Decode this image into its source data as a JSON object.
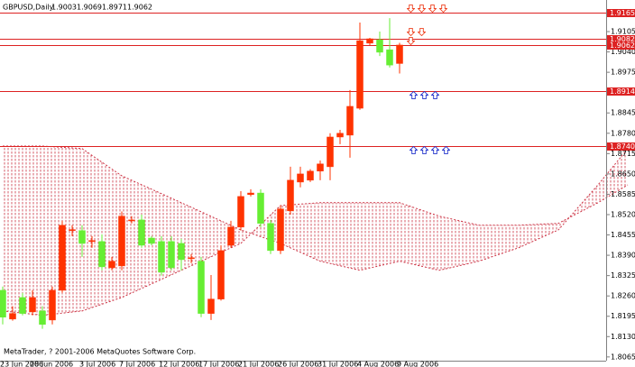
{
  "chart_data": {
    "type": "candlestick",
    "symbol": "GBPUSD,Daily",
    "footer": "MetaTrader, ? 2001-2006 MetaQuotes Software Corp.",
    "categories": [
      "23 Jun 2006",
      null,
      null,
      "28 Jun 2006",
      null,
      null,
      null,
      null,
      "3 Jul 2006",
      null,
      null,
      null,
      "7 Jul 2006",
      null,
      null,
      null,
      "12 Jul 2006",
      null,
      null,
      null,
      "17 Jul 2006",
      null,
      null,
      null,
      "21 Jul 2006",
      null,
      null,
      null,
      "26 Jul 2006",
      null,
      null,
      null,
      "31 Jul 2006",
      null,
      null,
      null,
      "4 Aug 2006",
      null,
      null,
      null,
      "9 Aug 2006"
    ],
    "open": [
      1.8278,
      1.8186,
      1.8255,
      1.8209,
      1.8212,
      1.8183,
      1.8278,
      1.8469,
      1.8469,
      1.8434,
      1.8434,
      1.835,
      1.8356,
      1.85,
      1.8503,
      1.8445,
      1.8434,
      1.8434,
      1.8428,
      1.8379,
      1.8371,
      1.8204,
      1.825,
      1.8422,
      1.848,
      1.8584,
      1.8589,
      1.8492,
      1.8405,
      1.8532,
      1.8624,
      1.863,
      1.8659,
      1.8673,
      1.8768,
      1.8774,
      1.886,
      1.9068,
      1.9079,
      1.9047,
      1.9003
    ],
    "high": [
      1.829,
      1.8227,
      1.827,
      1.8278,
      1.8227,
      1.829,
      1.85,
      1.8486,
      1.8486,
      1.8451,
      1.8457,
      1.8385,
      1.853,
      1.8515,
      1.852,
      1.8451,
      1.8451,
      1.8451,
      1.8443,
      1.8394,
      1.8385,
      1.8327,
      1.8422,
      1.85,
      1.8595,
      1.8601,
      1.8601,
      1.8503,
      1.8549,
      1.8673,
      1.8673,
      1.8665,
      1.8693,
      1.878,
      1.8791,
      1.8918,
      1.9134,
      1.9085,
      1.9105,
      1.9148,
      1.9069
    ],
    "low": [
      1.8169,
      1.8181,
      1.8198,
      1.8198,
      1.8155,
      1.8169,
      1.827,
      1.8451,
      1.8385,
      1.8414,
      1.8342,
      1.8342,
      1.8342,
      1.8492,
      1.8414,
      1.8422,
      1.8325,
      1.8342,
      1.8342,
      1.8365,
      1.8192,
      1.8183,
      1.8245,
      1.8414,
      1.8469,
      1.8578,
      1.848,
      1.8394,
      1.8394,
      1.852,
      1.8607,
      1.8624,
      1.863,
      1.863,
      1.8745,
      1.8702,
      1.8855,
      1.9062,
      1.9027,
      1.899,
      1.8971
    ],
    "close": [
      1.8192,
      1.8204,
      1.8204,
      1.8255,
      1.8169,
      1.8278,
      1.8486,
      1.8472,
      1.8428,
      1.8437,
      1.8353,
      1.8371,
      1.8515,
      1.8503,
      1.8422,
      1.8428,
      1.8336,
      1.835,
      1.8376,
      1.8382,
      1.8204,
      1.825,
      1.8405,
      1.848,
      1.8578,
      1.8589,
      1.8492,
      1.8405,
      1.8538,
      1.863,
      1.865,
      1.8659,
      1.8682,
      1.8768,
      1.878,
      1.8866,
      1.9076,
      1.9082,
      1.9039,
      1.8998,
      1.9062
    ],
    "up_color": "#ff3300",
    "down_color": "#66ee33",
    "cloud": {
      "x": [
        0,
        4,
        8,
        12,
        16,
        20,
        24,
        28,
        32,
        36,
        40,
        44,
        48,
        52,
        56,
        60,
        63
      ],
      "span_a": [
        1.8739,
        1.8739,
        1.8731,
        1.8644,
        1.8587,
        1.8529,
        1.8471,
        1.8428,
        1.8371,
        1.8342,
        1.8371,
        1.8342,
        1.8371,
        1.8414,
        1.8471,
        1.8615,
        1.8731
      ],
      "span_b": [
        1.8212,
        1.8198,
        1.8212,
        1.8255,
        1.8313,
        1.8371,
        1.8428,
        1.8549,
        1.8558,
        1.8558,
        1.8558,
        1.8515,
        1.8486,
        1.8486,
        1.8492,
        1.8558,
        1.8615
      ],
      "color": "#cc3344"
    },
    "levels": [
      1.9165,
      1.9082,
      1.9062,
      1.8914,
      {
        "value": 1.874,
        "label": "1.8740"
      }
    ],
    "level_color": "#dd2222",
    "ylim": [
      1.8053,
      1.9206
    ],
    "yticks": [
      1.9105,
      {
        "value": 1.904,
        "label": "1.9040"
      },
      1.8975,
      1.8845,
      {
        "value": 1.878,
        "label": "1.8780"
      },
      1.8715,
      {
        "value": 1.865,
        "label": "1.8650"
      },
      1.8585,
      {
        "value": 1.852,
        "label": "1.8520"
      },
      1.8455,
      {
        "value": 1.839,
        "label": "1.8390"
      },
      1.8325,
      {
        "value": 1.826,
        "label": "1.8260"
      },
      1.8195,
      {
        "value": 1.813,
        "label": "1.8130"
      },
      1.8065
    ]
  }
}
